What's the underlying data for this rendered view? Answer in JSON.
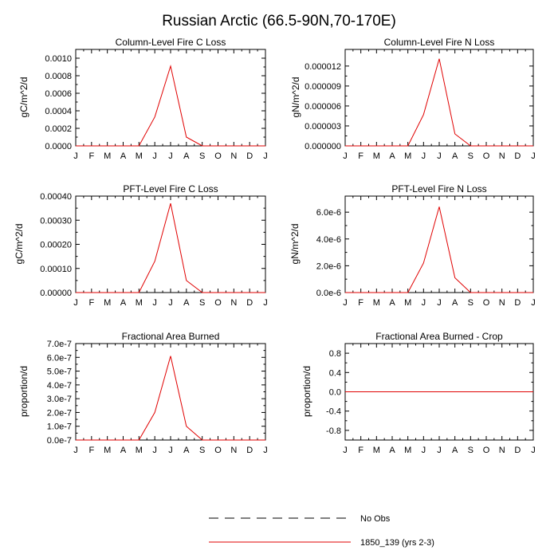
{
  "figure_title": "Russian Arctic (66.5-90N,70-170E)",
  "months": [
    "J",
    "F",
    "M",
    "A",
    "M",
    "J",
    "J",
    "A",
    "S",
    "O",
    "N",
    "D",
    "J"
  ],
  "colors": {
    "model": "#e00000",
    "obs": "#000000",
    "axes": "#000000"
  },
  "legend": {
    "obs_label": "No Obs",
    "model_label": "1850_139 (yrs 2-3)"
  },
  "chart_data": [
    {
      "type": "line",
      "title": "Column-Level Fire C Loss",
      "ylabel": "gC/m^2/d",
      "ylim": [
        0,
        0.0011
      ],
      "yticks": [
        0,
        0.0002,
        0.0004,
        0.0006,
        0.0008,
        0.001
      ],
      "ytick_labels": [
        "0.0000",
        "0.0002",
        "0.0004",
        "0.0006",
        "0.0008",
        "0.0010"
      ],
      "series": [
        {
          "name": "1850_139 (yrs 2-3)",
          "values": [
            0,
            0,
            0,
            0,
            0,
            0.00033,
            0.00091,
            0.0001,
            0,
            0,
            0,
            0,
            0
          ]
        }
      ]
    },
    {
      "type": "line",
      "title": "Column-Level Fire N Loss",
      "ylabel": "gN/m^2/d",
      "ylim": [
        0,
        1.45e-05
      ],
      "yticks": [
        0,
        3e-06,
        6e-06,
        9e-06,
        1.2e-05
      ],
      "ytick_labels": [
        "0.000000",
        "0.000003",
        "0.000006",
        "0.000009",
        "0.000012"
      ],
      "series": [
        {
          "name": "1850_139 (yrs 2-3)",
          "values": [
            0,
            0,
            0,
            0,
            0,
            4.7e-06,
            1.31e-05,
            1.8e-06,
            0,
            0,
            0,
            0,
            0
          ]
        }
      ]
    },
    {
      "type": "line",
      "title": "PFT-Level Fire C Loss",
      "ylabel": "gC/m^2/d",
      "ylim": [
        0,
        0.0004
      ],
      "yticks": [
        0,
        0.0001,
        0.0002,
        0.0003,
        0.0004
      ],
      "ytick_labels": [
        "0.00000",
        "0.00010",
        "0.00020",
        "0.00030",
        "0.00040"
      ],
      "series": [
        {
          "name": "1850_139 (yrs 2-3)",
          "values": [
            0,
            0,
            0,
            0,
            0,
            0.00013,
            0.00037,
            5e-05,
            0,
            0,
            0,
            0,
            0
          ]
        }
      ]
    },
    {
      "type": "line",
      "title": "PFT-Level Fire N Loss",
      "ylabel": "gN/m^2/d",
      "ylim": [
        0,
        7.2e-06
      ],
      "yticks": [
        0,
        2e-06,
        4e-06,
        6e-06
      ],
      "ytick_labels": [
        "0.0e-6",
        "2.0e-6",
        "4.0e-6",
        "6.0e-6"
      ],
      "series": [
        {
          "name": "1850_139 (yrs 2-3)",
          "values": [
            0,
            0,
            0,
            0,
            0,
            2.2e-06,
            6.4e-06,
            1.1e-06,
            0,
            0,
            0,
            0,
            0
          ]
        }
      ]
    },
    {
      "type": "line",
      "title": "Fractional Area Burned",
      "ylabel": "proportion/d",
      "ylim": [
        0,
        7e-07
      ],
      "yticks": [
        0,
        1e-07,
        2e-07,
        3e-07,
        4e-07,
        5e-07,
        6e-07,
        7e-07
      ],
      "ytick_labels": [
        "0.0e-7",
        "1.0e-7",
        "2.0e-7",
        "3.0e-7",
        "4.0e-7",
        "5.0e-7",
        "6.0e-7",
        "7.0e-7"
      ],
      "series": [
        {
          "name": "1850_139 (yrs 2-3)",
          "values": [
            0,
            0,
            0,
            0,
            0,
            2e-07,
            6.1e-07,
            1e-07,
            0,
            0,
            0,
            0,
            0
          ]
        }
      ]
    },
    {
      "type": "line",
      "title": "Fractional Area Burned - Crop",
      "ylabel": "proportion/d",
      "ylim": [
        -1,
        1
      ],
      "yticks": [
        -0.8,
        -0.4,
        0,
        0.4,
        0.8
      ],
      "ytick_labels": [
        "-0.8",
        "-0.4",
        "0.0",
        "0.4",
        "0.8"
      ],
      "series": [
        {
          "name": "1850_139 (yrs 2-3)",
          "values": [
            0,
            0,
            0,
            0,
            0,
            0,
            0,
            0,
            0,
            0,
            0,
            0,
            0
          ]
        }
      ]
    }
  ]
}
